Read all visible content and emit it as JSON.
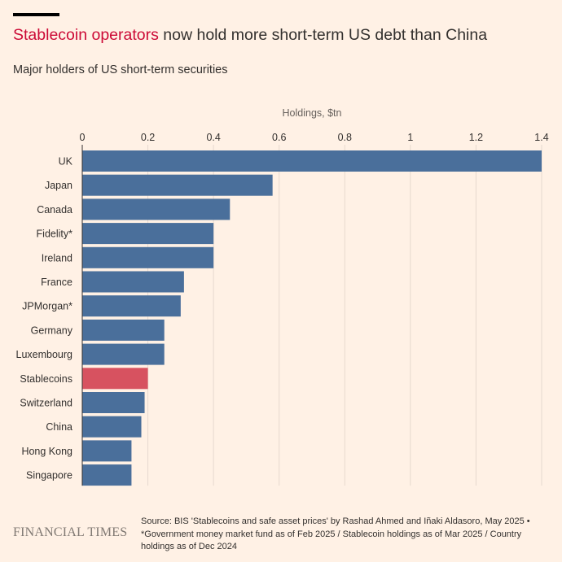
{
  "header": {
    "title_highlight": "Stablecoin operators",
    "title_rest": " now hold more short-term US debt than China",
    "subtitle": "Major holders of US short-term securities"
  },
  "footer": {
    "logo": "FINANCIAL TIMES",
    "source": "Source: BIS 'Stablecoins and safe asset prices' by Rashad Ahmed and Iñaki Aldasoro, May 2025 • *Government money market fund as of Feb 2025 / Stablecoin holdings as of Mar 2025 / Country holdings as of Dec 2024"
  },
  "colors": {
    "bar": "#4A6F9B",
    "highlight_bar": "#D75260",
    "background": "#FFF1E5",
    "title_accent": "#CC0A36"
  },
  "chart_data": {
    "type": "bar",
    "orientation": "horizontal",
    "xlabel": "Holdings, $tn",
    "xlim": [
      0,
      1.4
    ],
    "ticks": [
      0,
      0.2,
      0.4,
      0.6,
      0.8,
      1,
      1.2,
      1.4
    ],
    "tick_labels": [
      "0",
      "0.2",
      "0.4",
      "0.6",
      "0.8",
      "1",
      "1.2",
      "1.4"
    ],
    "gridlines": true,
    "categories": [
      "UK",
      "Japan",
      "Canada",
      "Fidelity*",
      "Ireland",
      "France",
      "JPMorgan*",
      "Germany",
      "Luxembourg",
      "Stablecoins",
      "Switzerland",
      "China",
      "Hong Kong",
      "Singapore"
    ],
    "values": [
      1.4,
      0.58,
      0.45,
      0.4,
      0.4,
      0.31,
      0.3,
      0.25,
      0.25,
      0.2,
      0.19,
      0.18,
      0.15,
      0.15
    ],
    "highlight": "Stablecoins"
  }
}
